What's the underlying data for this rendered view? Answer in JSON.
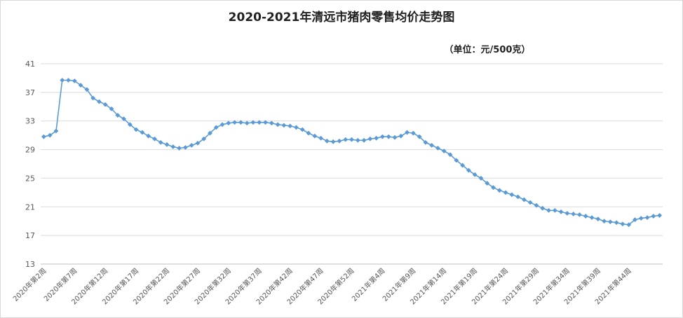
{
  "chart_data": {
    "type": "line",
    "title": "2020-2021年清远市猪肉零售均价走势图",
    "subtitle": "（单位：元/500克）",
    "ylim": [
      13,
      41
    ],
    "yticks": [
      13,
      17,
      21,
      25,
      29,
      33,
      37,
      41
    ],
    "grid": true,
    "legend": "none",
    "series_color": "#5b9bd5",
    "xtick_labels": [
      "2020年第2周",
      "2020年第7周",
      "2020年第12周",
      "2020年第17周",
      "2020年第22周",
      "2020年第27周",
      "2020年第32周",
      "2020年第37周",
      "2020年第42周",
      "2020年第47周",
      "2020年第52周",
      "2021年第4周",
      "2021年第9周",
      "2021年第14周",
      "2021年第19周",
      "2021年第24周",
      "2021年第29周",
      "2021年第34周",
      "2021年第39周",
      "2021年第44周"
    ],
    "series": [
      {
        "values": [
          30.8,
          31.0,
          31.6,
          38.7,
          38.7,
          38.6,
          38.0,
          37.4,
          36.2,
          35.7,
          35.3,
          34.7,
          33.8,
          33.3,
          32.5,
          31.8,
          31.4,
          30.9,
          30.5,
          30.0,
          29.7,
          29.4,
          29.2,
          29.3,
          29.6,
          29.9,
          30.5,
          31.3,
          32.1,
          32.5,
          32.7,
          32.8,
          32.8,
          32.7,
          32.8,
          32.8,
          32.8,
          32.7,
          32.5,
          32.4,
          32.3,
          32.1,
          31.8,
          31.3,
          30.9,
          30.6,
          30.2,
          30.1,
          30.2,
          30.4,
          30.4,
          30.3,
          30.3,
          30.5,
          30.6,
          30.8,
          30.8,
          30.7,
          30.9,
          31.4,
          31.3,
          30.8,
          30.0,
          29.6,
          29.2,
          28.8,
          28.3,
          27.5,
          26.8,
          26.1,
          25.5,
          25.0,
          24.3,
          23.7,
          23.3,
          23.0,
          22.7,
          22.4,
          22.0,
          21.6,
          21.2,
          20.8,
          20.5,
          20.5,
          20.3,
          20.1,
          20.0,
          19.9,
          19.7,
          19.5,
          19.3,
          19.0,
          18.9,
          18.8,
          18.6,
          18.5,
          19.2,
          19.4,
          19.5,
          19.7,
          19.8
        ]
      }
    ]
  }
}
